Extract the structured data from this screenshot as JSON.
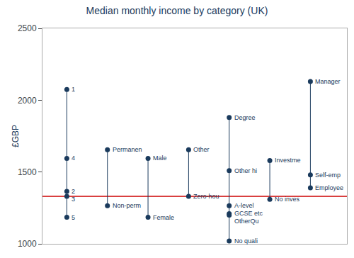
{
  "chart_data": {
    "type": "dot",
    "title": "Median monthly income by category (UK)",
    "ylabel": "£GBP",
    "categories": [
      null,
      null,
      null,
      null,
      null,
      null,
      null
    ],
    "groups": [
      {
        "values": [
          2075,
          1595,
          1365,
          1330,
          1185
        ],
        "labels": [
          "1",
          "4",
          "2",
          "3",
          "5"
        ]
      },
      {
        "values": [
          1655,
          1265
        ],
        "labels": [
          "Permanen",
          "Non-perm"
        ]
      },
      {
        "values": [
          1595,
          1185
        ],
        "labels": [
          "Male",
          "Female"
        ]
      },
      {
        "values": [
          1655,
          1330
        ],
        "labels": [
          "Other",
          "Zero-hou"
        ]
      },
      {
        "values": [
          1880,
          1510,
          1265,
          1210,
          1200,
          1020
        ],
        "labels": [
          "Degree",
          "Other hi",
          "A-level",
          "GCSE etc",
          "OtherQu",
          "No quali"
        ]
      },
      {
        "values": [
          1580,
          1310
        ],
        "labels": [
          "Investme",
          "No inves"
        ]
      },
      {
        "values": [
          2130,
          1480,
          1390
        ],
        "labels": [
          "Manager",
          "Self-emp",
          "Employee"
        ]
      }
    ],
    "color": "#1a3a5c",
    "reference_line": {
      "value": 1330,
      "color": "#cc0000"
    },
    "ylim": [
      1000,
      2500
    ],
    "yticks": [
      1000,
      1500,
      2000,
      2500
    ],
    "grid": false,
    "tick_labels": "y"
  }
}
